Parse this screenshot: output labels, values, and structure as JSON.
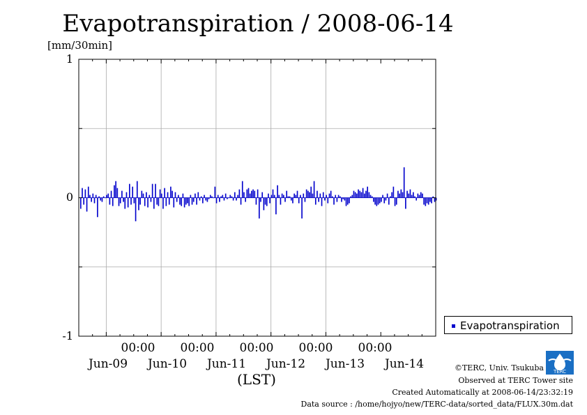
{
  "title": "Evapotranspiration / 2008-06-14",
  "unit": "[mm/30min]",
  "xlabel": "(LST)",
  "legend": "Evapotranspiration",
  "credits": {
    "copyright": "©TERC, Univ. Tsukuba",
    "observed": "Observed at TERC Tower site",
    "created": "Created Automatically at 2008-06-14/23:32:19",
    "source": "Data source : /home/hojyo/new/TERC-data/sorted_data/FLUX.30m.dat"
  },
  "logo_text": "TERC",
  "colors": {
    "series": "#0000cc",
    "grid": "#aaaaaa"
  },
  "chart_data": {
    "type": "bar",
    "title": "Evapotranspiration / 2008-06-14",
    "ylabel": "[mm/30min]",
    "xlabel": "(LST)",
    "ylim": [
      -1,
      1
    ],
    "yticks": [
      -1,
      0,
      1
    ],
    "yticks_labels": [
      "-1",
      "0",
      "1"
    ],
    "grid": true,
    "legend_position": "right-bottom",
    "x_start": "2008-06-08 12:00",
    "x_end": "2008-06-14 24:00",
    "x_time_labels": [
      "00:00",
      "00:00",
      "00:00",
      "00:00",
      "00:00"
    ],
    "x_date_labels": [
      "Jun-09",
      "Jun-10",
      "Jun-11",
      "Jun-12",
      "Jun-13",
      "Jun-14"
    ],
    "series": [
      {
        "name": "Evapotranspiration",
        "interval": "30min",
        "values": [
          -0.08,
          0.07,
          -0.05,
          0.06,
          -0.1,
          0.08,
          0.02,
          -0.03,
          0.03,
          -0.04,
          0.02,
          -0.14,
          0.01,
          -0.02,
          -0.03,
          0.01,
          0.0,
          0.02,
          0.03,
          -0.05,
          0.05,
          -0.06,
          0.09,
          0.12,
          0.07,
          -0.06,
          -0.04,
          0.05,
          -0.03,
          -0.08,
          0.04,
          -0.07,
          0.1,
          -0.05,
          0.08,
          -0.04,
          -0.17,
          0.12,
          -0.09,
          -0.05,
          0.05,
          0.03,
          -0.06,
          0.04,
          -0.07,
          0.02,
          -0.03,
          0.1,
          -0.08,
          0.1,
          -0.05,
          -0.06,
          0.06,
          0.03,
          -0.08,
          0.07,
          -0.06,
          0.04,
          -0.05,
          0.08,
          0.05,
          -0.07,
          0.04,
          -0.03,
          0.02,
          -0.05,
          -0.06,
          0.03,
          -0.07,
          -0.05,
          -0.04,
          -0.06,
          0.02,
          -0.05,
          -0.03,
          0.03,
          -0.05,
          0.04,
          -0.02,
          0.01,
          -0.04,
          0.02,
          -0.02,
          -0.03,
          -0.01,
          0.02,
          0.01,
          0.0,
          0.08,
          -0.04,
          0.02,
          -0.03,
          0.01,
          0.02,
          -0.02,
          0.03,
          -0.01,
          0.0,
          0.02,
          0.01,
          -0.02,
          0.04,
          -0.02,
          0.02,
          0.06,
          -0.05,
          0.12,
          0.04,
          -0.03,
          0.06,
          0.07,
          0.03,
          0.05,
          0.06,
          0.05,
          -0.05,
          0.06,
          -0.15,
          -0.03,
          0.04,
          -0.09,
          -0.05,
          -0.06,
          0.03,
          -0.04,
          0.02,
          0.06,
          0.02,
          -0.12,
          0.09,
          0.02,
          -0.05,
          0.03,
          0.02,
          -0.03,
          0.05,
          0.01,
          0.01,
          -0.02,
          -0.04,
          0.03,
          0.02,
          0.05,
          -0.04,
          0.02,
          -0.15,
          0.03,
          -0.03,
          0.06,
          0.05,
          0.04,
          0.08,
          0.03,
          0.12,
          -0.05,
          0.05,
          -0.03,
          0.03,
          -0.06,
          0.04,
          -0.02,
          0.02,
          -0.04,
          0.03,
          0.05,
          0.01,
          -0.05,
          0.02,
          -0.03,
          0.02,
          0.01,
          -0.03,
          -0.01,
          -0.02,
          -0.06,
          -0.05,
          -0.04,
          0.01,
          0.02,
          0.05,
          0.04,
          0.03,
          0.06,
          0.05,
          0.04,
          0.07,
          0.03,
          0.05,
          0.08,
          0.04,
          0.02,
          0.01,
          -0.03,
          -0.05,
          -0.06,
          -0.05,
          -0.04,
          -0.03,
          0.02,
          -0.04,
          -0.02,
          0.03,
          -0.05,
          0.01,
          0.04,
          0.08,
          -0.06,
          -0.05,
          0.05,
          0.03,
          0.06,
          0.04,
          0.22,
          -0.08,
          0.05,
          0.03,
          0.06,
          0.02,
          0.04,
          0.01,
          -0.02,
          0.03,
          0.02,
          0.04,
          0.03,
          -0.05,
          -0.06,
          -0.04,
          -0.05,
          -0.03,
          -0.04,
          0.01,
          -0.03,
          -0.02
        ]
      }
    ]
  }
}
